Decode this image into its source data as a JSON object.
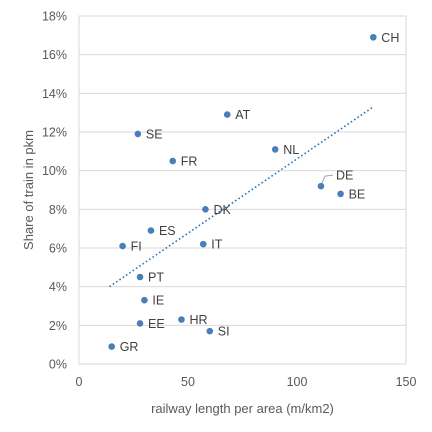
{
  "chart_data": {
    "type": "scatter",
    "xlabel": "railway length per area (m/km2)",
    "ylabel": "Share of train in pkm",
    "xlim": [
      0,
      150
    ],
    "ylim": [
      0,
      18
    ],
    "x_ticks": [
      0,
      50,
      100,
      150
    ],
    "y_ticks": [
      0,
      2,
      4,
      6,
      8,
      10,
      12,
      14,
      16,
      18
    ],
    "y_tick_format": "percent",
    "grid": "horizontal",
    "legend": "none",
    "series": [
      {
        "points": [
          {
            "label": "CH",
            "x": 135,
            "y": 16.9
          },
          {
            "label": "AT",
            "x": 68,
            "y": 12.9
          },
          {
            "label": "SE",
            "x": 27,
            "y": 11.9
          },
          {
            "label": "NL",
            "x": 90,
            "y": 11.1
          },
          {
            "label": "FR",
            "x": 43,
            "y": 10.5
          },
          {
            "label": "DE",
            "x": 111,
            "y": 9.2
          },
          {
            "label": "BE",
            "x": 120,
            "y": 8.8
          },
          {
            "label": "DK",
            "x": 58,
            "y": 8.0
          },
          {
            "label": "ES",
            "x": 33,
            "y": 6.9
          },
          {
            "label": "IT",
            "x": 57,
            "y": 6.2
          },
          {
            "label": "FI",
            "x": 20,
            "y": 6.1
          },
          {
            "label": "PT",
            "x": 28,
            "y": 4.5
          },
          {
            "label": "IE",
            "x": 30,
            "y": 3.3
          },
          {
            "label": "HR",
            "x": 47,
            "y": 2.3
          },
          {
            "label": "EE",
            "x": 28,
            "y": 2.1
          },
          {
            "label": "SI",
            "x": 60,
            "y": 1.7
          },
          {
            "label": "GR",
            "x": 15,
            "y": 0.9
          }
        ]
      }
    ],
    "trendline": {
      "type": "linear",
      "style": "dotted",
      "x": [
        14,
        135
      ],
      "y": [
        4.0,
        13.3
      ]
    },
    "colors": {
      "marker": "#4a7ebb",
      "trendline": "#2e75b6"
    }
  }
}
